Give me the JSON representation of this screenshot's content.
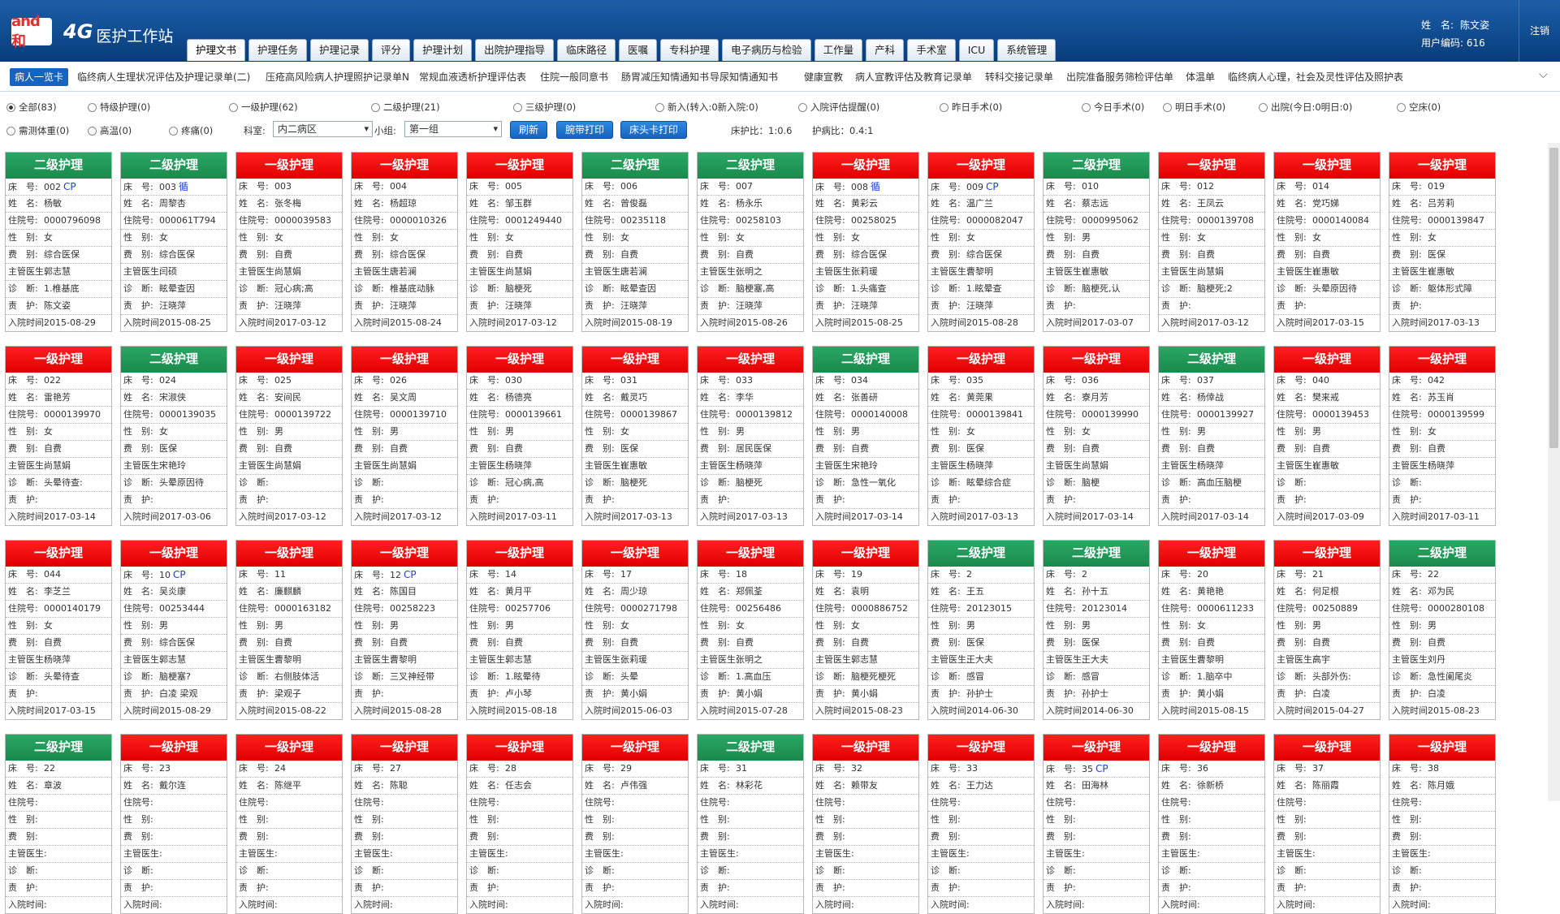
{
  "header": {
    "logo_mark": "and和",
    "logo_4g": "4G",
    "title": "医护工作站",
    "tabs": [
      "护理文书",
      "护理任务",
      "护理记录",
      "评分",
      "护理计划",
      "出院护理指导",
      "临床路径",
      "医嘱",
      "专科护理",
      "电子病历与检验",
      "工作量",
      "产科",
      "手术室",
      "ICU",
      "系统管理"
    ],
    "active_tab": "护理文书",
    "user_name_label": "姓　名:",
    "user_name": "陈文姿",
    "user_code_label": "用户编码:",
    "user_code": "616",
    "logout": "注销"
  },
  "subnav": [
    "病人一览卡",
    "临终病人生理状况评估及护理记录单(二)",
    "压疮高风险病人护理照护记录单N",
    "常规血液透析护理评估表",
    "住院一般同意书",
    "肠胃减压知情通知书",
    "导尿知情通知书",
    "健康宣教",
    "病人宣教评估及教育记录单",
    "转科交接记录单",
    "出院准备服务筛检评估单",
    "体温单",
    "临终病人心理，社会及灵性评估及照护表"
  ],
  "filters": {
    "row1": [
      "全部(83)",
      "特级护理(0)",
      "一级护理(62)",
      "二级护理(21)",
      "三级护理(0)",
      "新入(转入:0新入院:0)",
      "入院评估提醒(0)",
      "昨日手术(0)",
      "今日手术(0)",
      "明日手术(0)",
      "出院(今日:0明日:0)",
      "空床(0)"
    ],
    "row2": [
      "需测体重(0)",
      "高温(0)",
      "疼痛(0)"
    ],
    "dept_label": "科室:",
    "dept_value": "内二病区",
    "group_label": "小组:",
    "group_value": "第一组",
    "btn_refresh": "刷新",
    "btn_wrist": "腕带打印",
    "btn_bed": "床头卡打印",
    "bed_nurse_ratio": "床护比：1:0.6",
    "nurse_patient_ratio": "护病比：0.4:1"
  },
  "labels": {
    "bed": "床　号:",
    "name": "姓　名:",
    "admit": "住院号:",
    "sex": "性　别:",
    "fee": "费　别:",
    "doctor": "主管医生:",
    "diag": "诊　断:",
    "nurse": "责　护:",
    "time": "入院时间:"
  },
  "levels": {
    "1": "一级护理",
    "2": "二级护理"
  },
  "cards": [
    {
      "level": 2,
      "bed": "002",
      "tag": "CP",
      "name": "杨敏",
      "admit": "0000796098",
      "sex": "女",
      "fee": "综合医保",
      "doctor": "郭志慧",
      "diag": "1.椎基底",
      "nurse": "陈文姿",
      "time": "2015-08-29"
    },
    {
      "level": 2,
      "bed": "003",
      "tag": "循",
      "name": "周黎杏",
      "admit": "000061T794",
      "sex": "女",
      "fee": "综合医保",
      "doctor": "闫硕",
      "diag": "眩晕查因",
      "nurse": "汪晓萍",
      "time": "2015-08-25"
    },
    {
      "level": 1,
      "bed": "003",
      "tag": "",
      "name": "张冬梅",
      "admit": "0000039583",
      "sex": "女",
      "fee": "自费",
      "doctor": "尚慧娟",
      "diag": "冠心病;高",
      "nurse": "汪晓萍",
      "time": "2017-03-12"
    },
    {
      "level": 1,
      "bed": "004",
      "tag": "",
      "name": "杨超琼",
      "admit": "0000010326",
      "sex": "女",
      "fee": "综合医保",
      "doctor": "唐若澜",
      "diag": "椎基底动脉",
      "nurse": "汪晓萍",
      "time": "2015-08-24"
    },
    {
      "level": 1,
      "bed": "005",
      "tag": "",
      "name": "邹玉群",
      "admit": "0001249440",
      "sex": "女",
      "fee": "自费",
      "doctor": "尚慧娟",
      "diag": "脑梗死",
      "nurse": "汪晓萍",
      "time": "2017-03-12"
    },
    {
      "level": 2,
      "bed": "006",
      "tag": "",
      "name": "曾俊磊",
      "admit": "00235118",
      "sex": "女",
      "fee": "自费",
      "doctor": "唐若澜",
      "diag": "眩晕查因",
      "nurse": "汪晓萍",
      "time": "2015-08-19"
    },
    {
      "level": 2,
      "bed": "007",
      "tag": "",
      "name": "杨永乐",
      "admit": "00258103",
      "sex": "女",
      "fee": "自费",
      "doctor": "张明之",
      "diag": "脑梗塞,高",
      "nurse": "汪晓萍",
      "time": "2015-08-26"
    },
    {
      "level": 1,
      "bed": "008",
      "tag": "循",
      "name": "黄彩云",
      "admit": "00258025",
      "sex": "女",
      "fee": "综合医保",
      "doctor": "张莉瑗",
      "diag": "1.头痛查",
      "nurse": "汪晓萍",
      "time": "2015-08-25"
    },
    {
      "level": 1,
      "bed": "009",
      "tag": "CP",
      "name": "温广兰",
      "admit": "0000082047",
      "sex": "女",
      "fee": "综合医保",
      "doctor": "曹黎明",
      "diag": "1.眩晕查",
      "nurse": "汪晓萍",
      "time": "2015-08-28"
    },
    {
      "level": 2,
      "bed": "010",
      "tag": "",
      "name": "蔡志远",
      "admit": "0000995062",
      "sex": "男",
      "fee": "自费",
      "doctor": "崔惠敏",
      "diag": "脑梗死,认",
      "nurse": "",
      "time": "2017-03-07"
    },
    {
      "level": 1,
      "bed": "012",
      "tag": "",
      "name": "王凤云",
      "admit": "0000139708",
      "sex": "女",
      "fee": "自费",
      "doctor": "尚慧娟",
      "diag": "脑梗死;2",
      "nurse": "",
      "time": "2017-03-12"
    },
    {
      "level": 1,
      "bed": "014",
      "tag": "",
      "name": "党巧娣",
      "admit": "0000140084",
      "sex": "女",
      "fee": "自费",
      "doctor": "崔惠敏",
      "diag": "头晕原因待",
      "nurse": "",
      "time": "2017-03-15"
    },
    {
      "level": 1,
      "bed": "019",
      "tag": "",
      "name": "吕芳莉",
      "admit": "0000139847",
      "sex": "女",
      "fee": "医保",
      "doctor": "崔惠敏",
      "diag": "躯体形式障",
      "nurse": "",
      "time": "2017-03-13"
    },
    {
      "level": 1,
      "bed": "022",
      "tag": "",
      "name": "雷艳芳",
      "admit": "0000139970",
      "sex": "女",
      "fee": "自费",
      "doctor": "尚慧娟",
      "diag": "头晕待查:",
      "nurse": "",
      "time": "2017-03-14"
    },
    {
      "level": 2,
      "bed": "024",
      "tag": "",
      "name": "宋淑侠",
      "admit": "0000139035",
      "sex": "女",
      "fee": "医保",
      "doctor": "宋艳玲",
      "diag": "头晕原因待",
      "nurse": "",
      "time": "2017-03-06"
    },
    {
      "level": 1,
      "bed": "025",
      "tag": "",
      "name": "安间民",
      "admit": "0000139722",
      "sex": "男",
      "fee": "自费",
      "doctor": "尚慧娟",
      "diag": "",
      "nurse": "",
      "time": "2017-03-12"
    },
    {
      "level": 1,
      "bed": "026",
      "tag": "",
      "name": "吴文周",
      "admit": "0000139710",
      "sex": "男",
      "fee": "自费",
      "doctor": "尚慧娟",
      "diag": "",
      "nurse": "",
      "time": "2017-03-12"
    },
    {
      "level": 1,
      "bed": "030",
      "tag": "",
      "name": "杨德亮",
      "admit": "0000139661",
      "sex": "男",
      "fee": "自费",
      "doctor": "杨晓萍",
      "diag": "冠心病,高",
      "nurse": "",
      "time": "2017-03-11"
    },
    {
      "level": 1,
      "bed": "031",
      "tag": "",
      "name": "戴灵巧",
      "admit": "0000139867",
      "sex": "女",
      "fee": "医保",
      "doctor": "崔惠敏",
      "diag": "脑梗死",
      "nurse": "",
      "time": "2017-03-13"
    },
    {
      "level": 1,
      "bed": "033",
      "tag": "",
      "name": "李华",
      "admit": "0000139812",
      "sex": "男",
      "fee": "居民医保",
      "doctor": "杨晓萍",
      "diag": "脑梗死",
      "nurse": "",
      "time": "2017-03-13"
    },
    {
      "level": 2,
      "bed": "034",
      "tag": "",
      "name": "张善研",
      "admit": "0000140008",
      "sex": "男",
      "fee": "自费",
      "doctor": "宋艳玲",
      "diag": "急性一氧化",
      "nurse": "",
      "time": "2017-03-14"
    },
    {
      "level": 1,
      "bed": "035",
      "tag": "",
      "name": "黄莞果",
      "admit": "0000139841",
      "sex": "女",
      "fee": "医保",
      "doctor": "杨晓萍",
      "diag": "眩晕综合症",
      "nurse": "",
      "time": "2017-03-13"
    },
    {
      "level": 1,
      "bed": "036",
      "tag": "",
      "name": "寮月芳",
      "admit": "0000139990",
      "sex": "女",
      "fee": "自费",
      "doctor": "尚慧娟",
      "diag": "脑梗",
      "nurse": "",
      "time": "2017-03-14"
    },
    {
      "level": 2,
      "bed": "037",
      "tag": "",
      "name": "杨倖战",
      "admit": "0000139927",
      "sex": "男",
      "fee": "自费",
      "doctor": "杨晓萍",
      "diag": "高血压脑梗",
      "nurse": "",
      "time": "2017-03-14"
    },
    {
      "level": 1,
      "bed": "040",
      "tag": "",
      "name": "樊来戒",
      "admit": "0000139453",
      "sex": "男",
      "fee": "自费",
      "doctor": "崔惠敏",
      "diag": "",
      "nurse": "",
      "time": "2017-03-09"
    },
    {
      "level": 1,
      "bed": "042",
      "tag": "",
      "name": "苏玉肖",
      "admit": "0000139599",
      "sex": "女",
      "fee": "自费",
      "doctor": "杨晓萍",
      "diag": "",
      "nurse": "",
      "time": "2017-03-11"
    },
    {
      "level": 1,
      "bed": "044",
      "tag": "",
      "name": "李芝兰",
      "admit": "0000140179",
      "sex": "女",
      "fee": "自费",
      "doctor": "杨晓萍",
      "diag": "头晕待查",
      "nurse": "",
      "time": "2017-03-15"
    },
    {
      "level": 1,
      "bed": "10",
      "tag": "CP",
      "name": "吴炎康",
      "admit": "00253444",
      "sex": "男",
      "fee": "综合医保",
      "doctor": "郭志慧",
      "diag": "脑梗塞?",
      "nurse": "白凌 梁观",
      "time": "2015-08-29"
    },
    {
      "level": 1,
      "bed": "11",
      "tag": "",
      "name": "廉麒麟",
      "admit": "0000163182",
      "sex": "男",
      "fee": "自费",
      "doctor": "曹黎明",
      "diag": "右侧肢体活",
      "nurse": "梁观子",
      "time": "2015-08-22"
    },
    {
      "level": 1,
      "bed": "12",
      "tag": "CP",
      "name": "陈国目",
      "admit": "00258223",
      "sex": "男",
      "fee": "自费",
      "doctor": "曹黎明",
      "diag": "三叉神经带",
      "nurse": "",
      "time": "2015-08-28"
    },
    {
      "level": 1,
      "bed": "14",
      "tag": "",
      "name": "黄月平",
      "admit": "00257706",
      "sex": "男",
      "fee": "自费",
      "doctor": "郭志慧",
      "diag": "1.眩晕待",
      "nurse": "卢小琴",
      "time": "2015-08-18"
    },
    {
      "level": 1,
      "bed": "17",
      "tag": "",
      "name": "周少琼",
      "admit": "0000271798",
      "sex": "女",
      "fee": "自费",
      "doctor": "张莉瑗",
      "diag": "头晕",
      "nurse": "黄小娟",
      "time": "2015-06-03"
    },
    {
      "level": 1,
      "bed": "18",
      "tag": "",
      "name": "郑佩荃",
      "admit": "00256486",
      "sex": "女",
      "fee": "自费",
      "doctor": "张明之",
      "diag": "1.高血压",
      "nurse": "黄小娟",
      "time": "2015-07-28"
    },
    {
      "level": 1,
      "bed": "19",
      "tag": "",
      "name": "袁明",
      "admit": "0000886752",
      "sex": "女",
      "fee": "自费",
      "doctor": "郭志慧",
      "diag": "脑梗死梗死",
      "nurse": "黄小娟",
      "time": "2015-08-23"
    },
    {
      "level": 2,
      "bed": "2",
      "tag": "",
      "name": "王五",
      "admit": "20123015",
      "sex": "男",
      "fee": "医保",
      "doctor": "王大夫",
      "diag": "感冒",
      "nurse": "孙护士",
      "time": "2014-06-30"
    },
    {
      "level": 2,
      "bed": "2",
      "tag": "",
      "name": "孙十五",
      "admit": "20123014",
      "sex": "男",
      "fee": "医保",
      "doctor": "王大夫",
      "diag": "感冒",
      "nurse": "孙护士",
      "time": "2014-06-30"
    },
    {
      "level": 1,
      "bed": "20",
      "tag": "",
      "name": "黄艳艳",
      "admit": "0000611233",
      "sex": "女",
      "fee": "自费",
      "doctor": "曹黎明",
      "diag": "1.脑卒中",
      "nurse": "黄小娟",
      "time": "2015-08-15"
    },
    {
      "level": 1,
      "bed": "21",
      "tag": "",
      "name": "何足根",
      "admit": "00250889",
      "sex": "男",
      "fee": "自费",
      "doctor": "高宇",
      "diag": "头部外伤:",
      "nurse": "白凌",
      "time": "2015-04-27"
    },
    {
      "level": 2,
      "bed": "22",
      "tag": "",
      "name": "邓为民",
      "admit": "0000280108",
      "sex": "男",
      "fee": "自费",
      "doctor": "刘丹",
      "diag": "急性阑尾炎",
      "nurse": "白凌",
      "time": "2015-08-23"
    },
    {
      "level": 2,
      "bed": "22",
      "tag": "",
      "name": "章波"
    },
    {
      "level": 1,
      "bed": "23",
      "tag": "",
      "name": "戴尔连"
    },
    {
      "level": 1,
      "bed": "24",
      "tag": "",
      "name": "陈继平"
    },
    {
      "level": 1,
      "bed": "27",
      "tag": "",
      "name": "陈聪"
    },
    {
      "level": 1,
      "bed": "28",
      "tag": "",
      "name": "任志会"
    },
    {
      "level": 1,
      "bed": "29",
      "tag": "",
      "name": "卢伟强"
    },
    {
      "level": 2,
      "bed": "31",
      "tag": "",
      "name": "林彩花"
    },
    {
      "level": 1,
      "bed": "32",
      "tag": "",
      "name": "赖带友"
    },
    {
      "level": 1,
      "bed": "33",
      "tag": "",
      "name": "王力达"
    },
    {
      "level": 1,
      "bed": "35",
      "tag": "CP",
      "name": "田海林"
    },
    {
      "level": 1,
      "bed": "36",
      "tag": "",
      "name": "徐新桥"
    },
    {
      "level": 1,
      "bed": "37",
      "tag": "",
      "name": "陈丽霞"
    },
    {
      "level": 1,
      "bed": "38",
      "tag": "",
      "name": "陈月娥"
    }
  ]
}
